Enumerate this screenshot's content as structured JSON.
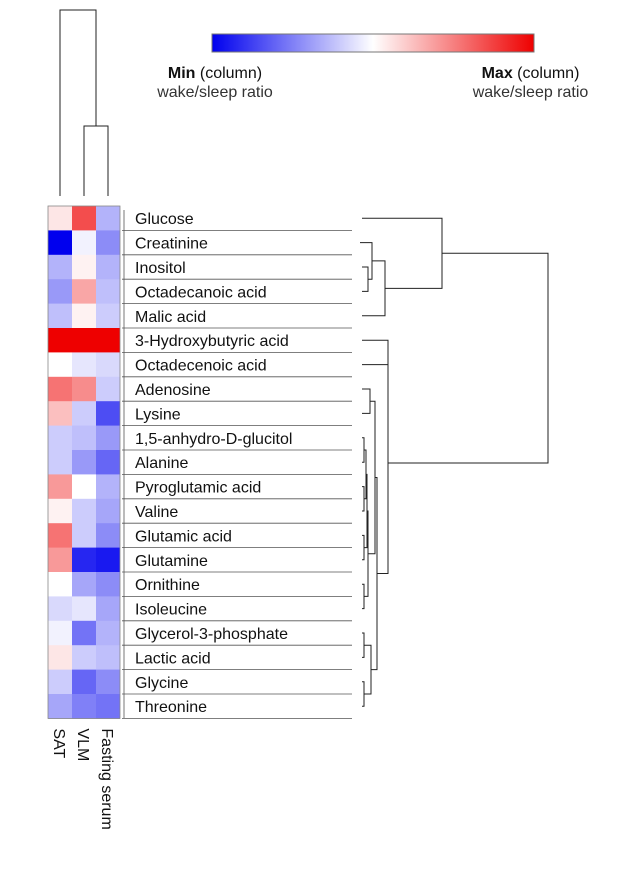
{
  "chart_data": {
    "type": "heatmap",
    "legend": {
      "min_label": "Min",
      "min_suffix": " (column)",
      "min_sub": "wake/sleep ratio",
      "max_label": "Max",
      "max_suffix": " (column)",
      "max_sub": "wake/sleep ratio",
      "colors": [
        "#0000ee",
        "#ffffff",
        "#ee0000"
      ]
    },
    "columns": [
      "SAT",
      "VLM",
      "Fasting serum"
    ],
    "rows": [
      {
        "name": "Glucose",
        "values": [
          0.1,
          0.7,
          -0.3
        ]
      },
      {
        "name": "Creatinine",
        "values": [
          -1.0,
          -0.05,
          -0.45
        ]
      },
      {
        "name": "Inositol",
        "values": [
          -0.3,
          0.05,
          -0.3
        ]
      },
      {
        "name": "Octadecanoic acid",
        "values": [
          -0.4,
          0.35,
          -0.25
        ]
      },
      {
        "name": "Malic acid",
        "values": [
          -0.25,
          0.05,
          -0.2
        ]
      },
      {
        "name": "3-Hydroxybutyric acid",
        "values": [
          1.0,
          1.0,
          1.0
        ]
      },
      {
        "name": "Octadecenoic acid",
        "values": [
          0.0,
          -0.1,
          -0.15
        ]
      },
      {
        "name": "Adenosine",
        "values": [
          0.55,
          0.45,
          -0.2
        ]
      },
      {
        "name": "Lysine",
        "values": [
          0.25,
          -0.2,
          -0.7
        ]
      },
      {
        "name": "1,5-anhydro-D-glucitol",
        "values": [
          -0.2,
          -0.25,
          -0.4
        ]
      },
      {
        "name": "Alanine",
        "values": [
          -0.2,
          -0.4,
          -0.6
        ]
      },
      {
        "name": "Pyroglutamic acid",
        "values": [
          0.4,
          0.0,
          -0.3
        ]
      },
      {
        "name": "Valine",
        "values": [
          0.05,
          -0.2,
          -0.35
        ]
      },
      {
        "name": "Glutamic acid",
        "values": [
          0.55,
          -0.2,
          -0.45
        ]
      },
      {
        "name": "Glutamine",
        "values": [
          0.4,
          -0.85,
          -0.9
        ]
      },
      {
        "name": "Ornithine",
        "values": [
          0.0,
          -0.35,
          -0.45
        ]
      },
      {
        "name": "Isoleucine",
        "values": [
          -0.15,
          -0.1,
          -0.35
        ]
      },
      {
        "name": "Glycerol-3-phosphate",
        "values": [
          -0.05,
          -0.55,
          -0.3
        ]
      },
      {
        "name": "Lactic acid",
        "values": [
          0.1,
          -0.2,
          -0.25
        ]
      },
      {
        "name": "Glycine",
        "values": [
          -0.2,
          -0.6,
          -0.45
        ]
      },
      {
        "name": "Threonine",
        "values": [
          -0.35,
          -0.5,
          -0.55
        ]
      }
    ],
    "value_range": [
      -1,
      1
    ],
    "column_dendrogram": {
      "pairs": [
        [
          "VLM",
          "Fasting serum"
        ],
        [
          "SAT",
          "VLM+Fasting serum"
        ]
      ]
    },
    "row_dendrogram": "hierarchical clustering of rows"
  }
}
